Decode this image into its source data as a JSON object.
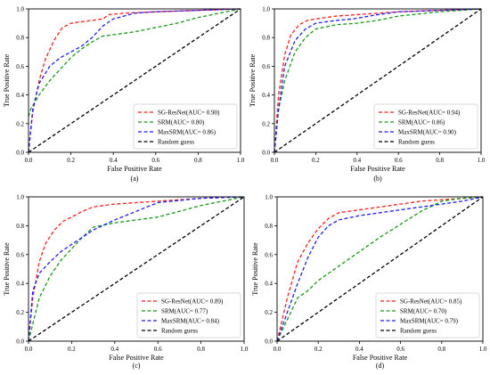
{
  "chart_data": [
    {
      "type": "line",
      "panel_label": "(a)",
      "xlabel": "False Positive Rate",
      "ylabel": "True Positive Rate",
      "xlim": [
        0,
        1
      ],
      "ylim": [
        0,
        1
      ],
      "xticks": [
        "0.0",
        "0.2",
        "0.4",
        "0.6",
        "0.8",
        "1.0"
      ],
      "yticks": [
        "0.0",
        "0.2",
        "0.4",
        "0.6",
        "0.8",
        "1.0"
      ],
      "legend_position": "lower-right",
      "series": [
        {
          "name": "SG-ResNet(AUC= 0.90)",
          "color": "#ff1f1f",
          "dash": "dashed",
          "x": [
            0,
            0.02,
            0.05,
            0.08,
            0.12,
            0.16,
            0.2,
            0.3,
            0.35,
            0.38,
            0.45,
            0.6,
            0.8,
            1.0
          ],
          "y": [
            0,
            0.28,
            0.5,
            0.65,
            0.78,
            0.87,
            0.9,
            0.92,
            0.93,
            0.96,
            0.97,
            0.98,
            0.99,
            1.0
          ]
        },
        {
          "name": "SRM(AUC= 0.80)",
          "color": "#1a9a1a",
          "dash": "dashed",
          "x": [
            0,
            0.01,
            0.05,
            0.1,
            0.15,
            0.2,
            0.25,
            0.3,
            0.35,
            0.4,
            0.5,
            0.6,
            0.7,
            0.8,
            0.9,
            1.0
          ],
          "y": [
            0.25,
            0.3,
            0.4,
            0.5,
            0.58,
            0.66,
            0.72,
            0.77,
            0.81,
            0.82,
            0.84,
            0.87,
            0.9,
            0.94,
            0.97,
            1.0
          ]
        },
        {
          "name": "MaxSRM(AUC= 0.86)",
          "color": "#1f1fff",
          "dash": "dashed",
          "x": [
            0,
            0.02,
            0.05,
            0.1,
            0.15,
            0.2,
            0.25,
            0.3,
            0.35,
            0.4,
            0.5,
            0.6,
            0.8,
            1.0
          ],
          "y": [
            0,
            0.3,
            0.48,
            0.6,
            0.66,
            0.7,
            0.74,
            0.8,
            0.88,
            0.93,
            0.97,
            0.98,
            0.99,
            1.0
          ]
        },
        {
          "name": "Random guess",
          "color": "#000000",
          "dash": "dashed",
          "x": [
            0,
            1
          ],
          "y": [
            0,
            1
          ]
        }
      ]
    },
    {
      "type": "line",
      "panel_label": "(b)",
      "xlabel": "False Positive Rate",
      "ylabel": "True Positive Rate",
      "xlim": [
        0,
        1
      ],
      "ylim": [
        0,
        1
      ],
      "xticks": [
        "0.0",
        "0.2",
        "0.4",
        "0.6",
        "0.8",
        "1.0"
      ],
      "yticks": [
        "0.0",
        "0.2",
        "0.4",
        "0.6",
        "0.8",
        "1.0"
      ],
      "legend_position": "lower-right",
      "series": [
        {
          "name": "SG-ResNet(AUC= 0.94)",
          "color": "#ff1f1f",
          "dash": "dashed",
          "x": [
            0,
            0.02,
            0.05,
            0.08,
            0.12,
            0.16,
            0.2,
            0.3,
            0.4,
            0.6,
            0.8,
            1.0
          ],
          "y": [
            0,
            0.4,
            0.68,
            0.82,
            0.89,
            0.92,
            0.93,
            0.95,
            0.96,
            0.98,
            0.99,
            1.0
          ]
        },
        {
          "name": "SRM(AUC= 0.86)",
          "color": "#1a9a1a",
          "dash": "dashed",
          "x": [
            0,
            0.02,
            0.05,
            0.1,
            0.15,
            0.2,
            0.3,
            0.4,
            0.5,
            0.6,
            0.8,
            1.0
          ],
          "y": [
            0,
            0.3,
            0.5,
            0.7,
            0.8,
            0.86,
            0.89,
            0.9,
            0.92,
            0.95,
            0.98,
            1.0
          ]
        },
        {
          "name": "MaxSRM(AUC= 0.90)",
          "color": "#1f1fff",
          "dash": "dashed",
          "x": [
            0,
            0.02,
            0.05,
            0.1,
            0.15,
            0.2,
            0.3,
            0.38,
            0.5,
            0.6,
            0.8,
            1.0
          ],
          "y": [
            0,
            0.3,
            0.6,
            0.78,
            0.86,
            0.9,
            0.92,
            0.93,
            0.96,
            0.98,
            0.99,
            1.0
          ]
        },
        {
          "name": "Random guess",
          "color": "#000000",
          "dash": "dashed",
          "x": [
            0,
            1
          ],
          "y": [
            0,
            1
          ]
        }
      ]
    },
    {
      "type": "line",
      "panel_label": "(c)",
      "xlabel": "False Positive Rate",
      "ylabel": "True Positive Rate",
      "xlim": [
        0,
        1
      ],
      "ylim": [
        0,
        1
      ],
      "xticks": [
        "0.0",
        "0.2",
        "0.4",
        "0.6",
        "0.8",
        "1.0"
      ],
      "yticks": [
        "0.0",
        "0.2",
        "0.4",
        "0.6",
        "0.8",
        "1.0"
      ],
      "legend_position": "lower-right",
      "series": [
        {
          "name": "SG-ResNet(AUC= 0.89)",
          "color": "#ff1f1f",
          "dash": "dashed",
          "x": [
            0,
            0.02,
            0.05,
            0.08,
            0.12,
            0.16,
            0.2,
            0.25,
            0.3,
            0.4,
            0.5,
            0.6,
            0.8,
            1.0
          ],
          "y": [
            0,
            0.3,
            0.55,
            0.68,
            0.77,
            0.83,
            0.86,
            0.9,
            0.93,
            0.95,
            0.96,
            0.97,
            0.99,
            1.0
          ]
        },
        {
          "name": "SRM(AUC= 0.77)",
          "color": "#1a9a1a",
          "dash": "dashed",
          "x": [
            0,
            0.02,
            0.05,
            0.1,
            0.15,
            0.2,
            0.25,
            0.3,
            0.4,
            0.5,
            0.6,
            0.7,
            0.8,
            0.9,
            1.0
          ],
          "y": [
            0,
            0.12,
            0.3,
            0.45,
            0.56,
            0.64,
            0.72,
            0.79,
            0.82,
            0.84,
            0.86,
            0.9,
            0.94,
            0.97,
            1.0
          ]
        },
        {
          "name": "MaxSRM(AUC= 0.84)",
          "color": "#1f1fff",
          "dash": "dashed",
          "x": [
            0,
            0.02,
            0.05,
            0.1,
            0.15,
            0.2,
            0.25,
            0.3,
            0.4,
            0.5,
            0.6,
            0.8,
            1.0
          ],
          "y": [
            0,
            0.35,
            0.47,
            0.55,
            0.62,
            0.67,
            0.72,
            0.77,
            0.84,
            0.9,
            0.96,
            0.99,
            1.0
          ]
        },
        {
          "name": "Random guess",
          "color": "#000000",
          "dash": "dashed",
          "x": [
            0,
            1
          ],
          "y": [
            0,
            1
          ]
        }
      ]
    },
    {
      "type": "line",
      "panel_label": "(d)",
      "xlabel": "False Positive Rate",
      "ylabel": "True Positive Rate",
      "xlim": [
        0,
        1
      ],
      "ylim": [
        0,
        1
      ],
      "xticks": [
        "0.0",
        "0.2",
        "0.4",
        "0.6",
        "0.8",
        "1.0"
      ],
      "yticks": [
        "0.0",
        "0.2",
        "0.4",
        "0.6",
        "0.8",
        "1.0"
      ],
      "legend_position": "lower-right",
      "series": [
        {
          "name": "SG-ResNet(AUC= 0.85)",
          "color": "#ff1f1f",
          "dash": "dashed",
          "x": [
            0,
            0.05,
            0.1,
            0.15,
            0.2,
            0.25,
            0.3,
            0.4,
            0.5,
            0.6,
            0.7,
            0.8,
            0.9,
            1.0
          ],
          "y": [
            0,
            0.3,
            0.55,
            0.68,
            0.78,
            0.85,
            0.89,
            0.91,
            0.93,
            0.95,
            0.97,
            0.98,
            0.99,
            1.0
          ]
        },
        {
          "name": "SRM(AUC= 0.70)",
          "color": "#1a9a1a",
          "dash": "dashed",
          "x": [
            0,
            0.05,
            0.1,
            0.15,
            0.2,
            0.3,
            0.4,
            0.5,
            0.6,
            0.7,
            0.8,
            0.9,
            1.0
          ],
          "y": [
            0,
            0.15,
            0.3,
            0.35,
            0.42,
            0.52,
            0.62,
            0.72,
            0.81,
            0.9,
            0.97,
            0.99,
            1.0
          ]
        },
        {
          "name": "MaxSRM(AUC= 0.79)",
          "color": "#1f1fff",
          "dash": "dashed",
          "x": [
            0,
            0.05,
            0.1,
            0.15,
            0.2,
            0.25,
            0.3,
            0.4,
            0.5,
            0.6,
            0.7,
            0.8,
            0.9,
            1.0
          ],
          "y": [
            0,
            0.2,
            0.4,
            0.58,
            0.72,
            0.8,
            0.84,
            0.87,
            0.89,
            0.91,
            0.93,
            0.95,
            0.97,
            1.0
          ]
        },
        {
          "name": "Random guess",
          "color": "#000000",
          "dash": "dashed",
          "x": [
            0,
            1
          ],
          "y": [
            0,
            1
          ]
        }
      ]
    }
  ]
}
